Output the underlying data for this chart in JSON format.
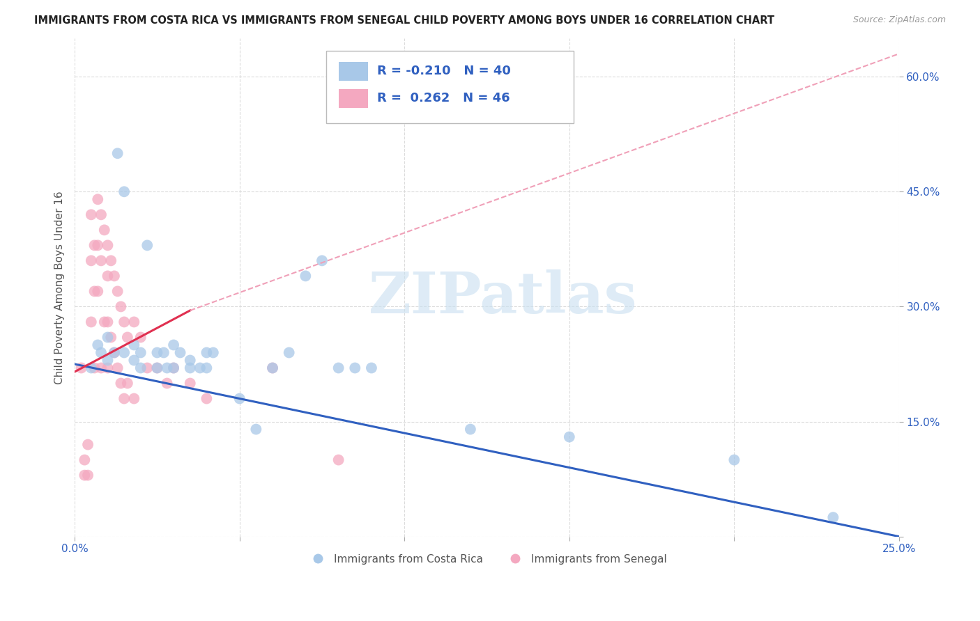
{
  "title": "IMMIGRANTS FROM COSTA RICA VS IMMIGRANTS FROM SENEGAL CHILD POVERTY AMONG BOYS UNDER 16 CORRELATION CHART",
  "source": "Source: ZipAtlas.com",
  "ylabel": "Child Poverty Among Boys Under 16",
  "xlim": [
    0.0,
    0.25
  ],
  "ylim": [
    0.0,
    0.65
  ],
  "watermark_text": "ZIPatlas",
  "costa_rica_color": "#a8c8e8",
  "senegal_color": "#f4a8c0",
  "trendline_cr_color": "#3060c0",
  "trendline_sn_solid_color": "#e03050",
  "trendline_sn_dashed_color": "#f0a0b8",
  "legend_cr_color": "#a8c8e8",
  "legend_sn_color": "#f4a8c0",
  "legend_text_color": "#3060c0",
  "axis_tick_color": "#3060c0",
  "ylabel_color": "#555555",
  "background_color": "#ffffff",
  "grid_color": "#d8d8d8",
  "title_color": "#222222",
  "source_color": "#999999",
  "watermark_color": "#c8dff0",
  "bottom_legend_color": "#555555",
  "costa_rica_x": [
    0.005,
    0.007,
    0.008,
    0.01,
    0.01,
    0.012,
    0.013,
    0.015,
    0.015,
    0.018,
    0.018,
    0.02,
    0.02,
    0.022,
    0.025,
    0.025,
    0.027,
    0.028,
    0.03,
    0.03,
    0.032,
    0.035,
    0.035,
    0.038,
    0.04,
    0.04,
    0.042,
    0.05,
    0.055,
    0.06,
    0.065,
    0.07,
    0.075,
    0.08,
    0.085,
    0.09,
    0.12,
    0.15,
    0.2,
    0.23
  ],
  "costa_rica_y": [
    0.22,
    0.25,
    0.24,
    0.23,
    0.26,
    0.24,
    0.5,
    0.45,
    0.24,
    0.23,
    0.25,
    0.24,
    0.22,
    0.38,
    0.24,
    0.22,
    0.24,
    0.22,
    0.25,
    0.22,
    0.24,
    0.22,
    0.23,
    0.22,
    0.24,
    0.22,
    0.24,
    0.18,
    0.14,
    0.22,
    0.24,
    0.34,
    0.36,
    0.22,
    0.22,
    0.22,
    0.14,
    0.13,
    0.1,
    0.025
  ],
  "senegal_x": [
    0.002,
    0.003,
    0.003,
    0.004,
    0.004,
    0.005,
    0.005,
    0.005,
    0.006,
    0.006,
    0.006,
    0.007,
    0.007,
    0.007,
    0.008,
    0.008,
    0.008,
    0.009,
    0.009,
    0.01,
    0.01,
    0.01,
    0.01,
    0.011,
    0.011,
    0.012,
    0.012,
    0.013,
    0.013,
    0.014,
    0.014,
    0.015,
    0.015,
    0.016,
    0.016,
    0.018,
    0.018,
    0.02,
    0.022,
    0.025,
    0.028,
    0.03,
    0.035,
    0.04,
    0.06,
    0.08
  ],
  "senegal_y": [
    0.22,
    0.1,
    0.08,
    0.12,
    0.08,
    0.42,
    0.36,
    0.28,
    0.38,
    0.32,
    0.22,
    0.44,
    0.38,
    0.32,
    0.42,
    0.36,
    0.22,
    0.4,
    0.28,
    0.38,
    0.34,
    0.28,
    0.22,
    0.36,
    0.26,
    0.34,
    0.24,
    0.32,
    0.22,
    0.3,
    0.2,
    0.28,
    0.18,
    0.26,
    0.2,
    0.28,
    0.18,
    0.26,
    0.22,
    0.22,
    0.2,
    0.22,
    0.2,
    0.18,
    0.22,
    0.1
  ],
  "cr_trend_x0": 0.0,
  "cr_trend_y0": 0.225,
  "cr_trend_x1": 0.25,
  "cr_trend_y1": 0.0,
  "sn_trend_solid_x0": 0.0,
  "sn_trend_solid_y0": 0.215,
  "sn_trend_solid_x1": 0.035,
  "sn_trend_solid_y1": 0.295,
  "sn_trend_dashed_x0": 0.035,
  "sn_trend_dashed_y0": 0.295,
  "sn_trend_dashed_x1": 0.25,
  "sn_trend_dashed_y1": 0.63
}
